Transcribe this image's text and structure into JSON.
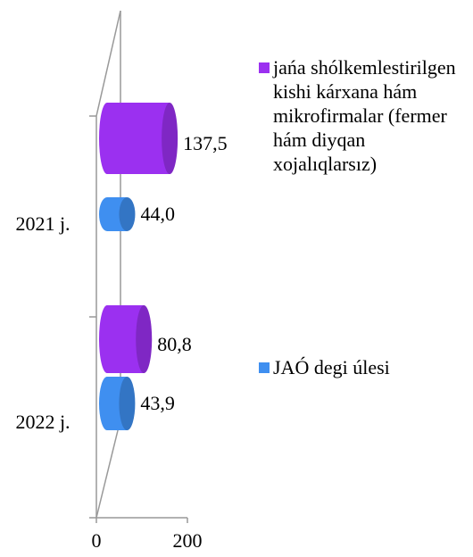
{
  "chart_data": {
    "type": "bar3d_horizontal",
    "categories": [
      "2021 j.",
      "2022 j."
    ],
    "series": [
      {
        "name": "jańa shólkemlestirilgen kishi  kárxana hám mikrofirmalar (fermer hám diyqan xojalıqlarsız)",
        "color": "#9b30f0",
        "values": [
          137.5,
          80.8
        ],
        "value_labels": [
          "137,5",
          "80,8"
        ]
      },
      {
        "name": "JAÓ degi úlesi",
        "color": "#3f8ff0",
        "values": [
          44.0,
          43.9
        ],
        "value_labels": [
          "44,0",
          "43,9"
        ]
      }
    ],
    "xlim": [
      0,
      200
    ],
    "xticks": [
      0,
      200
    ]
  }
}
